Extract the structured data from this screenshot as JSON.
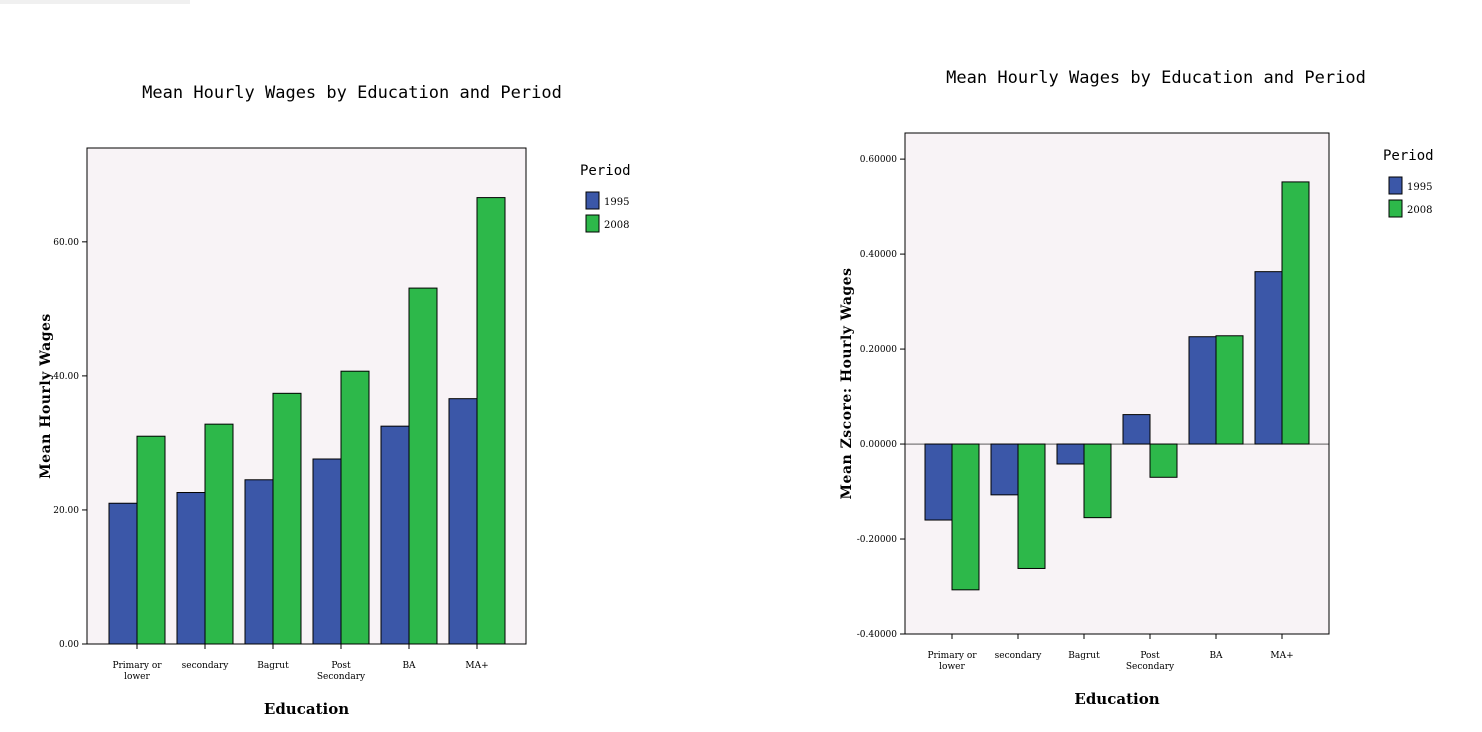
{
  "chart_data": [
    {
      "type": "bar",
      "title": "Mean Hourly Wages by Education and Period",
      "xlabel": "Education",
      "ylabel": "Mean Hourly Wages",
      "categories": [
        "Primary or lower",
        "secondary",
        "Bagrut",
        "Post Secondary",
        "BA",
        "MA+"
      ],
      "category_lines": [
        [
          "Primary or",
          "lower"
        ],
        [
          "secondary"
        ],
        [
          "Bagrut"
        ],
        [
          "Post",
          "Secondary"
        ],
        [
          "BA"
        ],
        [
          "MA+"
        ]
      ],
      "series": [
        {
          "name": "1995",
          "values": [
            21.0,
            22.6,
            24.5,
            27.6,
            32.5,
            36.6
          ]
        },
        {
          "name": "2008",
          "values": [
            31.0,
            32.8,
            37.4,
            40.7,
            53.1,
            66.6
          ]
        }
      ],
      "yticks": [
        0,
        20,
        40,
        60
      ],
      "ytick_labels": [
        "0.00",
        "20.00",
        "40.00",
        "60.00"
      ],
      "ylim": [
        0,
        74
      ],
      "legend_title": "Period",
      "legend_position": "right",
      "grid": false
    },
    {
      "type": "bar",
      "title": "Mean Hourly Wages by Education and Period",
      "xlabel": "Education",
      "ylabel": "Mean Zscore: Hourly Wages",
      "categories": [
        "Primary or lower",
        "secondary",
        "Bagrut",
        "Post Secondary",
        "BA",
        "MA+"
      ],
      "category_lines": [
        [
          "Primary or",
          "lower"
        ],
        [
          "secondary"
        ],
        [
          "Bagrut"
        ],
        [
          "Post",
          "Secondary"
        ],
        [
          "BA"
        ],
        [
          "MA+"
        ]
      ],
      "series": [
        {
          "name": "1995",
          "values": [
            -0.16,
            -0.107,
            -0.042,
            0.062,
            0.226,
            0.363
          ]
        },
        {
          "name": "2008",
          "values": [
            -0.307,
            -0.262,
            -0.155,
            -0.07,
            0.228,
            0.552
          ]
        }
      ],
      "yticks": [
        -0.4,
        -0.2,
        0,
        0.2,
        0.4,
        0.6
      ],
      "ytick_labels": [
        "-0.40000",
        "-0.20000",
        "0.00000",
        "0.20000",
        "0.40000",
        "0.60000"
      ],
      "ylim": [
        -0.4,
        0.655
      ],
      "legend_title": "Period",
      "legend_position": "right",
      "grid": false
    }
  ],
  "colors": {
    "series_1995": "#3b57a8",
    "series_2008": "#2db84a",
    "plot_background": "#f8f3f6",
    "axis": "#000000"
  }
}
